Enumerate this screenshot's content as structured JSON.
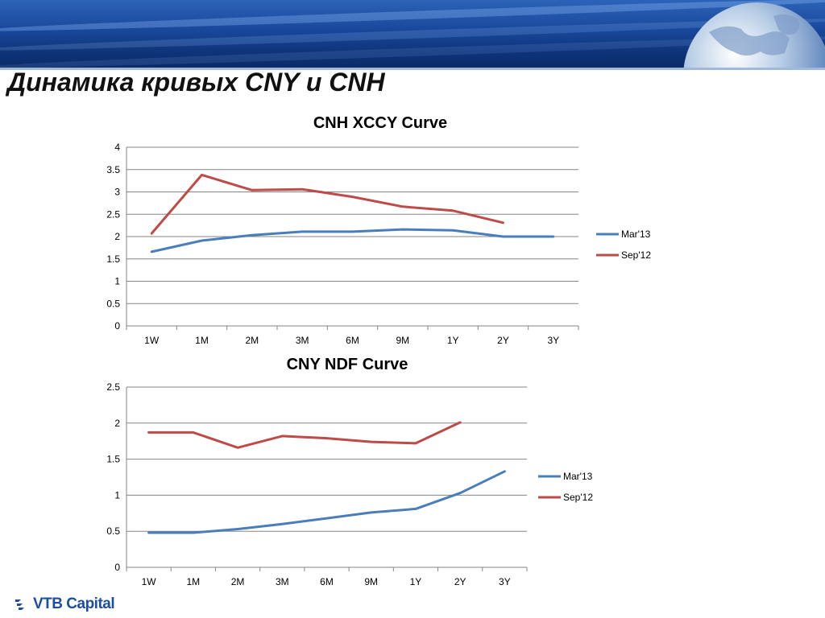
{
  "header": {
    "title": "Динамика кривых CNY и CNH"
  },
  "footer": {
    "logo_text": "VTB Capital"
  },
  "colors": {
    "series_mar13": "#4a7ebb",
    "series_sep12": "#be4b48",
    "grid": "#868686",
    "banner": "#1a4a9e"
  },
  "chart_data": [
    {
      "type": "line",
      "title": "CNH XCCY Curve",
      "categories": [
        "1W",
        "1M",
        "2M",
        "3M",
        "6M",
        "9M",
        "1Y",
        "2Y",
        "3Y"
      ],
      "ylim": [
        0,
        4
      ],
      "yticks": [
        "0",
        "0.5",
        "1",
        "1.5",
        "2",
        "2.5",
        "3",
        "3.5",
        "4"
      ],
      "grid": true,
      "legend": "right",
      "series": [
        {
          "name": "Mar'13",
          "values": [
            1.66,
            1.91,
            2.03,
            2.11,
            2.11,
            2.16,
            2.14,
            2.0,
            2.0
          ]
        },
        {
          "name": "Sep'12",
          "values": [
            2.07,
            3.38,
            3.04,
            3.06,
            2.89,
            2.67,
            2.58,
            2.31,
            null
          ]
        }
      ]
    },
    {
      "type": "line",
      "title": "CNY NDF Curve",
      "categories": [
        "1W",
        "1M",
        "2M",
        "3M",
        "6M",
        "9M",
        "1Y",
        "2Y",
        "3Y"
      ],
      "ylim": [
        0,
        2.5
      ],
      "yticks": [
        "0",
        "0.5",
        "1",
        "1.5",
        "2",
        "2.5"
      ],
      "grid": true,
      "legend": "right",
      "series": [
        {
          "name": "Mar'13",
          "values": [
            0.48,
            0.48,
            0.53,
            0.6,
            0.68,
            0.76,
            0.81,
            1.03,
            1.33
          ]
        },
        {
          "name": "Sep'12",
          "values": [
            1.87,
            1.87,
            1.66,
            1.82,
            1.79,
            1.74,
            1.72,
            2.01,
            null
          ]
        }
      ]
    }
  ]
}
